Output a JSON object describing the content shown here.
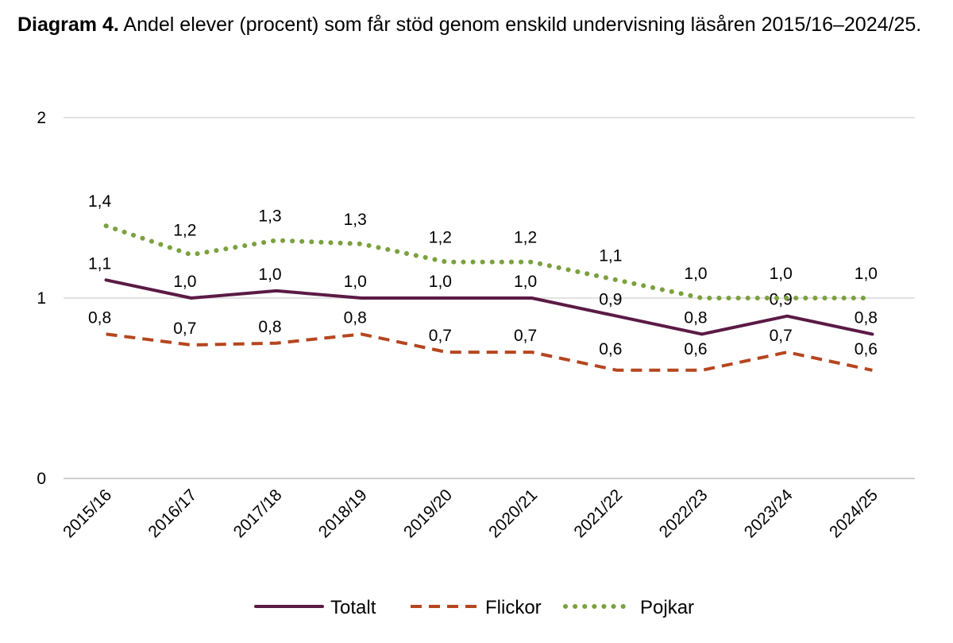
{
  "title": {
    "prefix": "Diagram 4.",
    "text": " Andel elever (procent) som får stöd genom enskild undervisning läsåren 2015/16–2024/25."
  },
  "chart_data": {
    "type": "line",
    "categories": [
      "2015/16",
      "2016/17",
      "2017/18",
      "2018/19",
      "2019/20",
      "2020/21",
      "2021/22",
      "2022/23",
      "2023/24",
      "2024/25"
    ],
    "ylim": [
      0,
      2
    ],
    "yticks": [
      "0",
      "1",
      "2"
    ],
    "grid": true,
    "legend_position": "bottom",
    "series": [
      {
        "name": "Totalt",
        "color": "#5b1a45",
        "style": "solid",
        "values": [
          1.1,
          1.0,
          1.04,
          1.0,
          1.0,
          1.0,
          0.9,
          0.8,
          0.9,
          0.8
        ],
        "labels": [
          "1,1",
          "1,0",
          "1,0",
          "1,0",
          "1,0",
          "1,0",
          "0,9",
          "0,8",
          "0,9",
          "0,8"
        ]
      },
      {
        "name": "Flickor",
        "color": "#b5461f",
        "style": "dashed",
        "values": [
          0.8,
          0.74,
          0.75,
          0.8,
          0.7,
          0.7,
          0.6,
          0.6,
          0.7,
          0.6
        ],
        "labels": [
          "0,8",
          "0,7",
          "0,8",
          "0,8",
          "0,7",
          "0,7",
          "0,6",
          "0,6",
          "0,7",
          "0,6"
        ]
      },
      {
        "name": "Pojkar",
        "color": "#7ba13e",
        "style": "dotted",
        "values": [
          1.4,
          1.24,
          1.32,
          1.3,
          1.2,
          1.2,
          1.1,
          1.0,
          1.0,
          1.0
        ],
        "labels": [
          "1,4",
          "1,2",
          "1,3",
          "1,3",
          "1,2",
          "1,2",
          "1,1",
          "1,0",
          "1,0",
          "1,0"
        ]
      }
    ]
  }
}
